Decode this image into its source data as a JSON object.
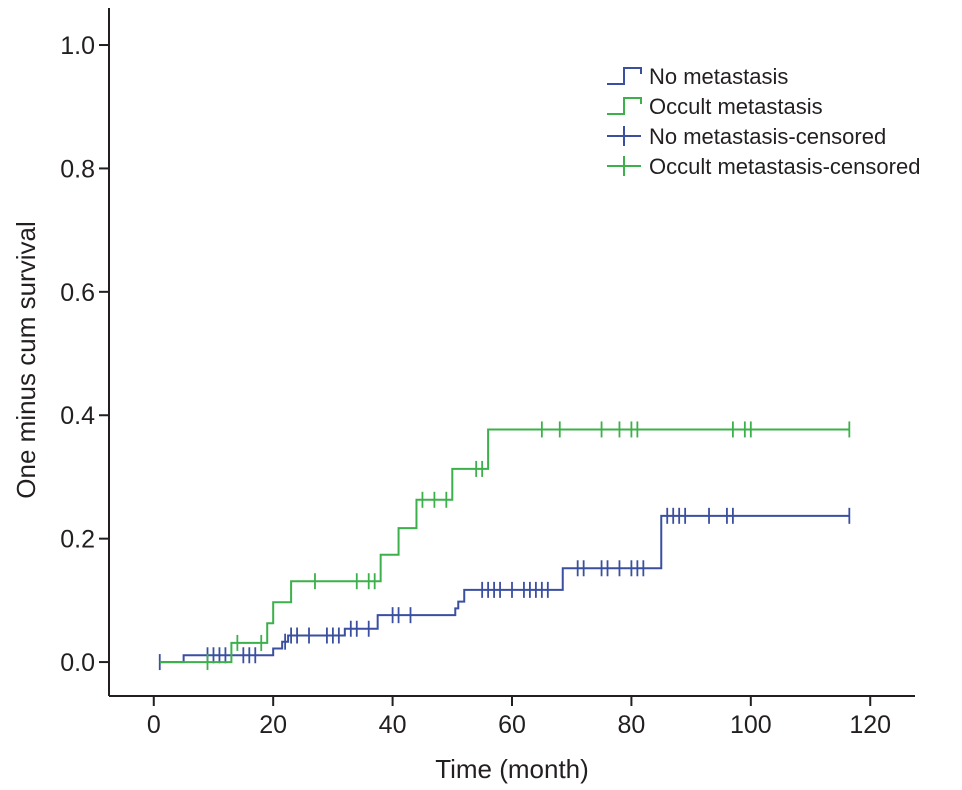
{
  "chart_data": {
    "type": "line",
    "step": true,
    "xlabel": "Time (month)",
    "ylabel": "One minus cum survival",
    "xlim": [
      -7.5,
      127.5
    ],
    "ylim": [
      -0.055,
      1.06
    ],
    "xticks": [
      0,
      20,
      40,
      60,
      80,
      100,
      120
    ],
    "xtick_labels": [
      "0",
      "20",
      "40",
      "60",
      "80",
      "100",
      "120"
    ],
    "yticks": [
      0.0,
      0.2,
      0.4,
      0.6,
      0.8,
      1.0
    ],
    "ytick_labels": [
      "0.0",
      "0.2",
      "0.4",
      "0.6",
      "0.8",
      "1.0"
    ],
    "grid": false,
    "legend_position": "top-right",
    "legend": [
      {
        "label": "No metastasis",
        "kind": "step",
        "color": "#3a4fa0"
      },
      {
        "label": "Occult metastasis",
        "kind": "step",
        "color": "#3cb04a"
      },
      {
        "label": "No metastasis-censored",
        "kind": "censor",
        "color": "#3a4fa0"
      },
      {
        "label": "Occult metastasis-censored",
        "kind": "censor",
        "color": "#3cb04a"
      }
    ],
    "series": [
      {
        "name": "No metastasis",
        "color": "#3a4fa0",
        "steps": [
          [
            1,
            0.0
          ],
          [
            5,
            0.011
          ],
          [
            19.5,
            0.011
          ],
          [
            20,
            0.022
          ],
          [
            21.5,
            0.033
          ],
          [
            22.5,
            0.043
          ],
          [
            32,
            0.054
          ],
          [
            37.5,
            0.076
          ],
          [
            50.5,
            0.087
          ],
          [
            51,
            0.098
          ],
          [
            52,
            0.117
          ],
          [
            68.5,
            0.152
          ],
          [
            85,
            0.237
          ],
          [
            116.5,
            0.237
          ]
        ],
        "censored": [
          [
            1,
            0.0
          ],
          [
            9,
            0.011
          ],
          [
            10,
            0.011
          ],
          [
            11,
            0.011
          ],
          [
            12,
            0.011
          ],
          [
            15,
            0.011
          ],
          [
            16,
            0.011
          ],
          [
            17,
            0.011
          ],
          [
            22,
            0.033
          ],
          [
            23,
            0.043
          ],
          [
            24,
            0.043
          ],
          [
            26,
            0.043
          ],
          [
            29,
            0.043
          ],
          [
            30,
            0.043
          ],
          [
            31,
            0.043
          ],
          [
            33,
            0.054
          ],
          [
            34,
            0.054
          ],
          [
            36,
            0.054
          ],
          [
            40,
            0.076
          ],
          [
            41,
            0.076
          ],
          [
            43,
            0.076
          ],
          [
            55,
            0.117
          ],
          [
            56,
            0.117
          ],
          [
            57,
            0.117
          ],
          [
            58,
            0.117
          ],
          [
            60,
            0.117
          ],
          [
            62,
            0.117
          ],
          [
            63,
            0.117
          ],
          [
            64,
            0.117
          ],
          [
            65,
            0.117
          ],
          [
            66,
            0.117
          ],
          [
            71,
            0.152
          ],
          [
            72,
            0.152
          ],
          [
            75,
            0.152
          ],
          [
            76,
            0.152
          ],
          [
            78,
            0.152
          ],
          [
            80,
            0.152
          ],
          [
            81,
            0.152
          ],
          [
            82,
            0.152
          ],
          [
            86,
            0.237
          ],
          [
            87,
            0.237
          ],
          [
            88,
            0.237
          ],
          [
            89,
            0.237
          ],
          [
            93,
            0.237
          ],
          [
            96,
            0.237
          ],
          [
            97,
            0.237
          ],
          [
            116.5,
            0.237
          ]
        ]
      },
      {
        "name": "Occult metastasis",
        "color": "#3cb04a",
        "steps": [
          [
            1,
            0.0
          ],
          [
            13,
            0.031
          ],
          [
            19,
            0.063
          ],
          [
            20,
            0.097
          ],
          [
            23,
            0.131
          ],
          [
            38,
            0.174
          ],
          [
            41,
            0.217
          ],
          [
            44,
            0.263
          ],
          [
            50,
            0.313
          ],
          [
            56,
            0.377
          ],
          [
            116.5,
            0.377
          ]
        ],
        "censored": [
          [
            9,
            0.0
          ],
          [
            14,
            0.031
          ],
          [
            18,
            0.031
          ],
          [
            27,
            0.131
          ],
          [
            34,
            0.131
          ],
          [
            36,
            0.131
          ],
          [
            37,
            0.131
          ],
          [
            45,
            0.263
          ],
          [
            47,
            0.263
          ],
          [
            49,
            0.263
          ],
          [
            54,
            0.313
          ],
          [
            55,
            0.313
          ],
          [
            65,
            0.377
          ],
          [
            68,
            0.377
          ],
          [
            75,
            0.377
          ],
          [
            78,
            0.377
          ],
          [
            80,
            0.377
          ],
          [
            81,
            0.377
          ],
          [
            97,
            0.377
          ],
          [
            99,
            0.377
          ],
          [
            100,
            0.377
          ],
          [
            116.5,
            0.377
          ]
        ]
      }
    ]
  }
}
